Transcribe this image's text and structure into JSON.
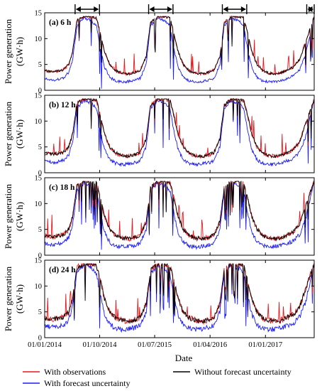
{
  "chart_data": {
    "type": "line",
    "x_range": [
      "2014-01-01",
      "2017-08-31"
    ],
    "date_ticks": [
      {
        "date": "2014-01-01",
        "label": "01/01/2014"
      },
      {
        "date": "2014-10-01",
        "label": "01/10/2014"
      },
      {
        "date": "2015-07-01",
        "label": "01/07/2015"
      },
      {
        "date": "2016-04-01",
        "label": "01/04/2016"
      },
      {
        "date": "2017-01-01",
        "label": "01/01/2017"
      }
    ],
    "xlabel": "Date",
    "ylabel_line1": "Power generation",
    "ylabel_line2": "(GW·h)",
    "ylim": [
      0,
      15
    ],
    "yticks": [
      0,
      5,
      10,
      15
    ],
    "grid": false,
    "legend_position": "bottom",
    "wet_season_spans": [
      [
        "2014-06-01",
        "2014-09-30"
      ],
      [
        "2015-06-01",
        "2015-09-30"
      ],
      [
        "2016-06-01",
        "2016-09-30"
      ],
      [
        "2017-07-25",
        "2017-08-31"
      ]
    ],
    "legend": {
      "observations": "With observations",
      "forecast_uncertainty": "With forecast uncertainty",
      "without_uncertainty": "Without forecast uncertainty"
    },
    "series_colors": {
      "observations": "#e8161c",
      "forecast_uncertainty": "#1a1aff",
      "without_uncertainty": "#000000"
    },
    "profile_note_units": "GW·h",
    "series_profile": {
      "dates": [
        "2014-01-01",
        "2014-02-15",
        "2014-04-01",
        "2014-05-01",
        "2014-05-20",
        "2014-06-10",
        "2014-07-15",
        "2014-08-20",
        "2014-09-15",
        "2014-10-05",
        "2014-10-25",
        "2014-11-20",
        "2014-12-20",
        "2015-01-20",
        "2015-02-20",
        "2015-03-20",
        "2015-04-20",
        "2015-05-20",
        "2015-06-10",
        "2015-07-15",
        "2015-08-20",
        "2015-09-15",
        "2015-10-05",
        "2015-10-25",
        "2015-11-20",
        "2015-12-20",
        "2016-01-20",
        "2016-02-20",
        "2016-03-20",
        "2016-04-20",
        "2016-05-20",
        "2016-06-10",
        "2016-07-15",
        "2016-08-20",
        "2016-09-15",
        "2016-10-05",
        "2016-10-25",
        "2016-11-20",
        "2016-12-20",
        "2017-01-20",
        "2017-02-20",
        "2017-03-20",
        "2017-04-20",
        "2017-05-20",
        "2017-06-20",
        "2017-07-20",
        "2017-08-31"
      ],
      "without_uncertainty": [
        3.8,
        3.6,
        3.9,
        5.0,
        7.5,
        13.5,
        14.3,
        14.3,
        14.0,
        11.0,
        7.5,
        5.0,
        3.8,
        3.3,
        3.2,
        3.4,
        3.9,
        6.5,
        13.0,
        14.3,
        14.3,
        14.0,
        11.0,
        7.5,
        5.0,
        3.8,
        3.3,
        3.2,
        3.4,
        3.9,
        6.5,
        13.0,
        14.3,
        14.3,
        14.0,
        11.0,
        7.5,
        5.0,
        3.8,
        3.3,
        3.2,
        3.4,
        3.9,
        4.5,
        6.0,
        9.5,
        14.3
      ],
      "forecast_uncertainty": [
        2.2,
        2.0,
        2.3,
        3.5,
        6.0,
        12.5,
        14.0,
        13.5,
        12.5,
        8.0,
        4.5,
        2.5,
        1.8,
        1.6,
        1.7,
        1.9,
        2.3,
        5.0,
        12.5,
        14.0,
        13.5,
        12.5,
        8.0,
        4.5,
        2.5,
        1.8,
        1.6,
        1.7,
        1.9,
        2.3,
        5.0,
        12.5,
        14.0,
        13.5,
        12.5,
        8.0,
        4.5,
        2.5,
        1.8,
        1.6,
        1.7,
        1.9,
        2.3,
        2.8,
        4.0,
        7.0,
        14.3
      ]
    },
    "panels": [
      {
        "label": "(a) 6 h",
        "show_spans": true,
        "show_x_ticklabels": false
      },
      {
        "label": "(b) 12 h",
        "show_spans": false,
        "show_x_ticklabels": false
      },
      {
        "label": "(c) 18 h",
        "show_spans": false,
        "show_x_ticklabels": false
      },
      {
        "label": "(d) 24 h",
        "show_spans": false,
        "show_x_ticklabels": true
      }
    ]
  }
}
